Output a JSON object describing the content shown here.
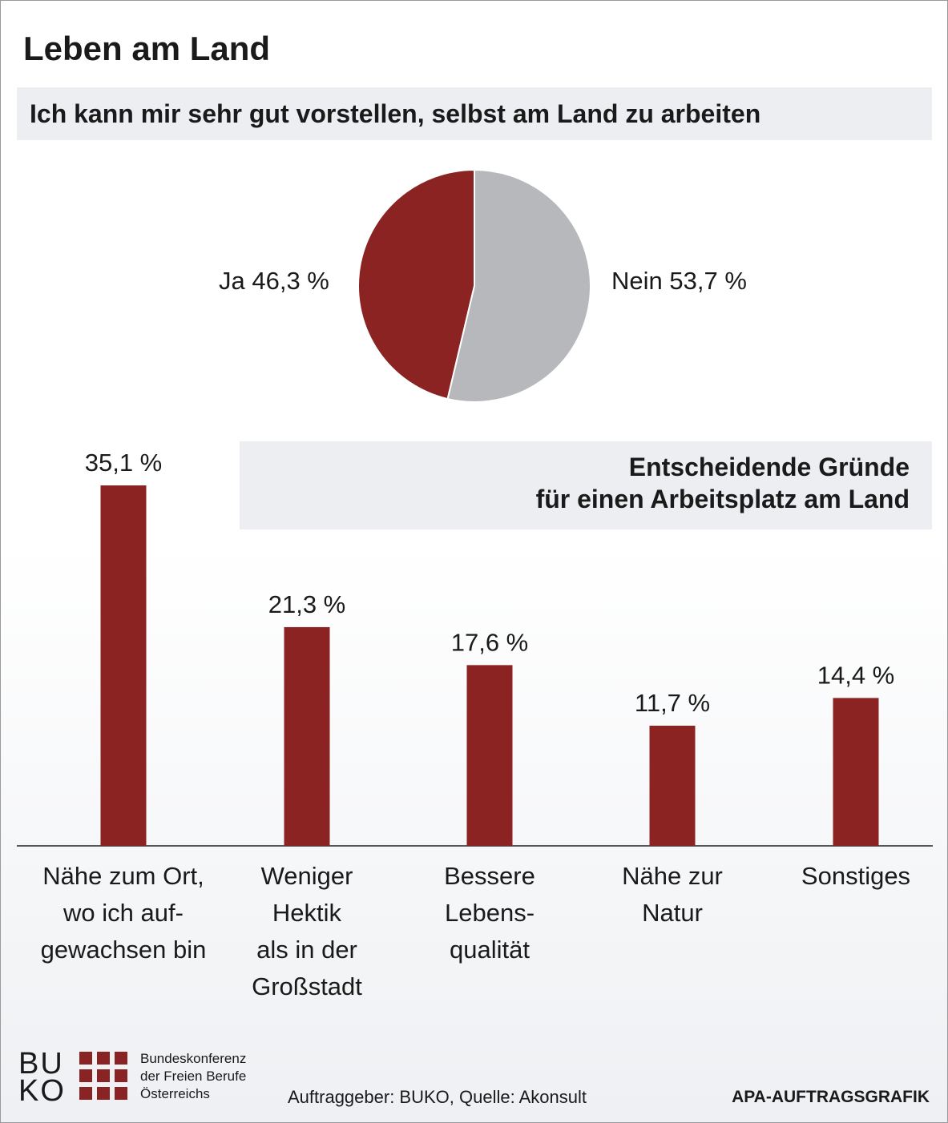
{
  "title": "Leben am Land",
  "pie_chart": {
    "subtitle": "Ich kann mir sehr gut vorstellen, selbst am Land zu arbeiten",
    "labels": [
      "Ja 46,3 %",
      "Nein 53,7 %"
    ]
  },
  "bar_chart": {
    "section_title_line1": "Entscheidende Gründe",
    "section_title_line2": "für einen Arbeitsplatz am Land",
    "value_labels": [
      "35,1 %",
      "21,3 %",
      "17,6 %",
      "11,7 %",
      "14,4 %"
    ],
    "categories": [
      [
        "Nähe zum Ort,",
        "wo ich auf-",
        "gewachsen bin"
      ],
      [
        "Weniger",
        "Hektik",
        "als in der",
        "Großstadt"
      ],
      [
        "Bessere",
        "Lebens-",
        "qualität"
      ],
      [
        "Nähe zur",
        "Natur"
      ],
      [
        "Sonstiges"
      ]
    ]
  },
  "chart_data": [
    {
      "type": "pie",
      "title": "Ich kann mir sehr gut vorstellen, selbst am Land zu arbeiten",
      "slices": [
        {
          "label": "Ja",
          "value": 46.3,
          "color": "#8b2323"
        },
        {
          "label": "Nein",
          "value": 53.7,
          "color": "#b6b8bc"
        }
      ]
    },
    {
      "type": "bar",
      "title": "Entscheidende Gründe für einen Arbeitsplatz am Land",
      "categories": [
        "Nähe zum Ort, wo ich aufgewachsen bin",
        "Weniger Hektik als in der Großstadt",
        "Bessere Lebensqualität",
        "Nähe zur Natur",
        "Sonstiges"
      ],
      "values": [
        35.1,
        21.3,
        17.6,
        11.7,
        14.4
      ],
      "unit": "%",
      "color": "#8b2323",
      "grid": false
    }
  ],
  "footer": {
    "logo_letters_top": "BU",
    "logo_letters_bottom": "KO",
    "logo_line1": "Bundeskonferenz",
    "logo_line2": "der Freien Berufe",
    "logo_line3": "Österreichs",
    "source": "Auftraggeber: BUKO, Quelle: Akonsult",
    "credit": "APA-AUFTRAGSGRAFIK"
  },
  "colors": {
    "accent": "#8b2323",
    "secondary": "#b6b8bc",
    "panel": "#eceef2"
  }
}
